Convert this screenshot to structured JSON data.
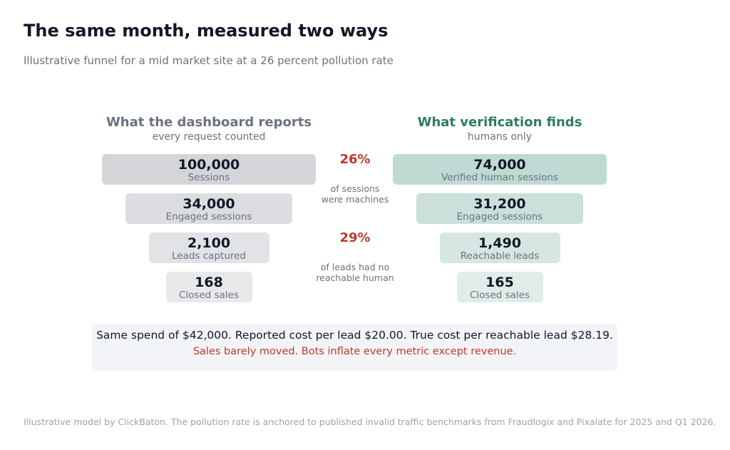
{
  "title": "The same month, measured two ways",
  "subtitle": "Illustrative funnel for a mid market site at a 26 percent pollution rate",
  "chart_data": {
    "type": "funnel",
    "left": {
      "title": "What the dashboard reports",
      "subtitle": "every request counted",
      "color": "#6b7280",
      "stages": [
        {
          "value": 100000,
          "display": "100,000",
          "label": "Sessions"
        },
        {
          "value": 34000,
          "display": "34,000",
          "label": "Engaged sessions"
        },
        {
          "value": 2100,
          "display": "2,100",
          "label": "Leads captured"
        },
        {
          "value": 168,
          "display": "168",
          "label": "Closed sales"
        }
      ]
    },
    "right": {
      "title": "What verification finds",
      "subtitle": "humans only",
      "color": "#2f7a63",
      "stages": [
        {
          "value": 74000,
          "display": "74,000",
          "label": "Verified human sessions"
        },
        {
          "value": 31200,
          "display": "31,200",
          "label": "Engaged sessions"
        },
        {
          "value": 1490,
          "display": "1,490",
          "label": "Reachable leads"
        },
        {
          "value": 165,
          "display": "165",
          "label": "Closed sales"
        }
      ]
    },
    "annotations": [
      {
        "value": "26%",
        "text_lines": [
          "of sessions",
          "were machines"
        ]
      },
      {
        "value": "29%",
        "text_lines": [
          "of leads had no",
          "reachable human"
        ]
      }
    ],
    "colors": {
      "left_bars": [
        "#d4d5d8",
        "#dcdde0",
        "#e2e3e6",
        "#e8e9eb"
      ],
      "right_bars": [
        "#bfd9d3",
        "#cbe0db",
        "#d6e7e3",
        "#e1ece9"
      ],
      "accent": "#c0392b"
    }
  },
  "summary": {
    "line1": "Same spend of $42,000.  Reported cost per lead $20.00.  True cost per reachable lead $28.19.",
    "line2": "Sales barely moved. Bots inflate every metric except revenue."
  },
  "footer": "Illustrative model by ClickBaton. The pollution rate is anchored to published invalid traffic benchmarks from Fraudlogix and Pixalate for 2025 and Q1 2026."
}
